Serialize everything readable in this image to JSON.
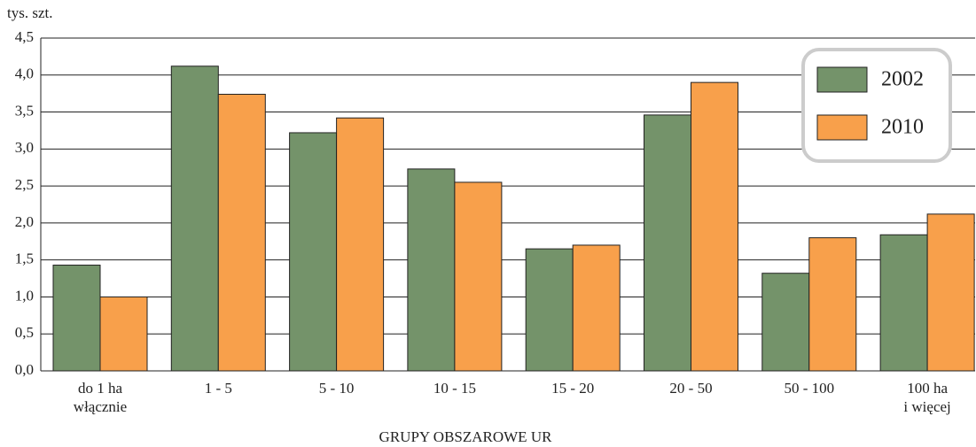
{
  "chart_data": {
    "type": "bar",
    "y_axis_label": "tys. szt.",
    "x_axis_label": "GRUPY OBSZAROWE UR",
    "categories": [
      "do 1 ha\nwłącznie",
      "1 - 5",
      "5 - 10",
      "10 - 15",
      "15 - 20",
      "20 - 50",
      "50 - 100",
      "100 ha\ni więcej"
    ],
    "series": [
      {
        "name": "2002",
        "color": "#74936a",
        "values": [
          1.43,
          4.12,
          3.22,
          2.73,
          1.65,
          3.46,
          1.32,
          1.84
        ]
      },
      {
        "name": "2010",
        "color": "#f8a04b",
        "values": [
          1.0,
          3.74,
          3.42,
          2.55,
          1.7,
          3.9,
          1.8,
          2.12
        ]
      }
    ],
    "ylim": [
      0,
      4.5
    ],
    "yticks": [
      {
        "value": 0,
        "label": "0,0"
      },
      {
        "value": 0.5,
        "label": "0,5"
      },
      {
        "value": 1,
        "label": "1,0"
      },
      {
        "value": 1.5,
        "label": "1,5"
      },
      {
        "value": 2,
        "label": "2,0"
      },
      {
        "value": 2.5,
        "label": "2,5"
      },
      {
        "value": 3,
        "label": "3,0"
      },
      {
        "value": 3.5,
        "label": "3,5"
      },
      {
        "value": 4,
        "label": "4,0"
      },
      {
        "value": 4.5,
        "label": "4,5"
      }
    ],
    "grid": true,
    "legend": "upper right"
  }
}
